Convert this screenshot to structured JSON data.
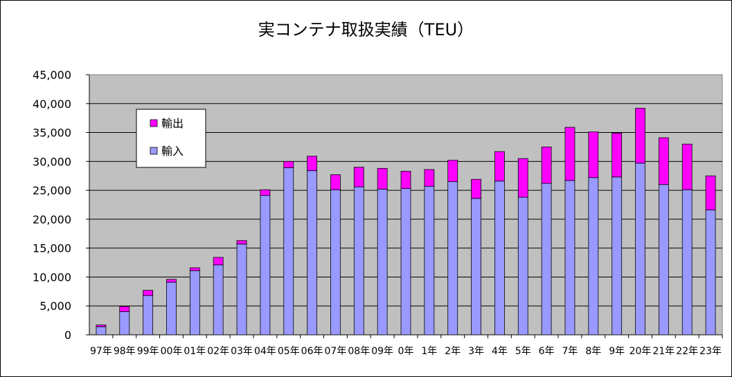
{
  "chart_data": {
    "type": "bar",
    "stacked": true,
    "title": "実コンテナ取扱実績（TEU）",
    "xlabel": "",
    "ylabel": "",
    "ylim": [
      0,
      45000
    ],
    "yticks": [
      "0",
      "5,000",
      "10,000",
      "15,000",
      "20,000",
      "25,000",
      "30,000",
      "35,000",
      "40,000",
      "45,000"
    ],
    "grid": true,
    "legend_position": "top-left",
    "categories": [
      "97年",
      "98年",
      "99年",
      "00年",
      "01年",
      "02年",
      "03年",
      "04年",
      "05年",
      "06年",
      "07年",
      "08年",
      "09年",
      "0年",
      "1年",
      "2年",
      "3年",
      "4年",
      "5年",
      "6年",
      "7年",
      "8年",
      "9年",
      "20年",
      "21年",
      "22年",
      "23年"
    ],
    "series": [
      {
        "name": "輸入",
        "color": "#9999ff",
        "values": [
          1400,
          4000,
          6800,
          9100,
          11100,
          12100,
          15700,
          24100,
          28900,
          28400,
          25100,
          25600,
          25200,
          25300,
          25700,
          26500,
          23600,
          26600,
          23800,
          26200,
          26700,
          27200,
          27300,
          29700,
          26000,
          25100,
          21600
        ]
      },
      {
        "name": "輸出",
        "color": "#ff00ff",
        "values": [
          300,
          900,
          900,
          500,
          500,
          1300,
          600,
          1000,
          1100,
          2500,
          2600,
          3400,
          3600,
          3000,
          2900,
          3700,
          3300,
          5100,
          6700,
          6300,
          9200,
          7900,
          7600,
          9500,
          8100,
          7900,
          5900
        ]
      }
    ]
  }
}
